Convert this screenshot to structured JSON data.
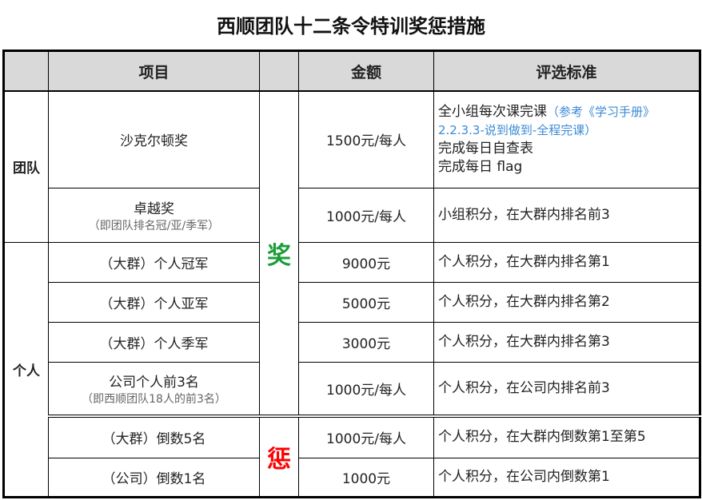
{
  "title": "西顺团队十二条令特训奖惩措施",
  "headers": {
    "item": "项目",
    "amount": "金额",
    "criteria": "评选标准"
  },
  "categories": {
    "team": "团队",
    "individual": "个人"
  },
  "labels": {
    "reward": "奖",
    "penalty": "惩"
  },
  "colors": {
    "reward": "#1a9e3a",
    "penalty": "#ff0000",
    "header_bg": "#d9d9d9",
    "note": "#3b8ad6"
  },
  "rows": [
    {
      "item": "沙克尔顿奖",
      "amount": "1500元/每人",
      "criteria": [
        "全小组每次课完课",
        "（参考《学习手册》2.2.3.3-说到做到-全程完课）",
        "完成每日自查表",
        "完成每日 flag"
      ]
    },
    {
      "item": "卓越奖",
      "item_note": "（即团队排名冠/亚/季军）",
      "amount": "1000元/每人",
      "criteria": "小组积分，在大群内排名前3"
    },
    {
      "item": "（大群）个人冠军",
      "amount": "9000元",
      "criteria": "个人积分，在大群内排名第1"
    },
    {
      "item": "（大群）个人亚军",
      "amount": "5000元",
      "criteria": "个人积分，在大群内排名第2"
    },
    {
      "item": "（大群）个人季军",
      "amount": "3000元",
      "criteria": "个人积分，在大群内排名第3"
    },
    {
      "item": "公司个人前3名",
      "item_note": "（即西顺团队18人的前3名）",
      "amount": "1000元/每人",
      "criteria": "个人积分，在公司内排名前3"
    },
    {
      "item": "（大群）倒数5名",
      "amount": "1000元/每人",
      "criteria": "个人积分，在大群内倒数第1至第5"
    },
    {
      "item": "（公司）倒数1名",
      "amount": "1000元",
      "criteria": "个人积分，在公司内倒数第1"
    }
  ]
}
